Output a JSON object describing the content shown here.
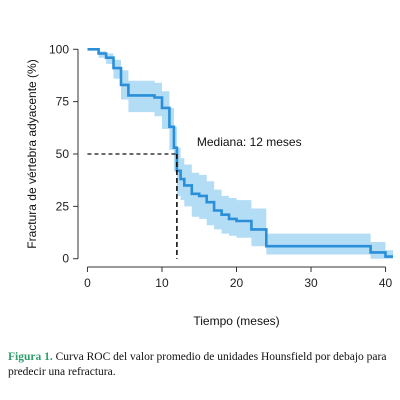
{
  "chart_data": {
    "type": "line",
    "title": "",
    "xlabel": "Tiempo (meses)",
    "ylabel": "Fractura de vértebra adyacente (%)",
    "xlim": [
      -1,
      41
    ],
    "ylim": [
      -3,
      103
    ],
    "xticks": [
      0,
      10,
      20,
      30,
      40
    ],
    "yticks": [
      0,
      25,
      50,
      75,
      100
    ],
    "grid": false,
    "series": [
      {
        "line_color": "#2a8fd8",
        "band_color": "#b3dcf5",
        "x": [
          0,
          1.5,
          2.5,
          3.5,
          4.5,
          5.5,
          9,
          10,
          11,
          11.6,
          12,
          12.5,
          13,
          14,
          15,
          16,
          17,
          18,
          19,
          20,
          22,
          24,
          32,
          38,
          40,
          41
        ],
        "y": [
          100,
          98,
          96,
          91,
          83,
          78,
          77,
          72,
          63,
          53,
          42,
          38,
          35,
          31,
          30,
          27,
          23,
          21,
          19,
          18,
          14,
          6,
          6,
          3,
          1,
          1
        ],
        "lower": [
          100,
          96,
          93,
          86,
          76,
          70,
          68,
          62,
          52,
          42,
          30,
          28,
          25,
          20,
          19,
          16,
          14,
          12,
          11,
          10,
          6,
          2,
          2,
          0,
          0,
          0
        ],
        "upper": [
          100,
          99,
          98,
          95,
          90,
          85,
          84,
          80,
          72,
          63,
          53,
          48,
          45,
          41,
          40,
          37,
          33,
          30,
          29,
          28,
          24,
          12,
          12,
          8,
          4,
          4
        ]
      }
    ],
    "median_guide": {
      "x": 12,
      "y": 50
    },
    "annotation": "Mediana: 12 meses"
  },
  "caption": {
    "label": "Figura 1.",
    "text": " Curva ROC del valor promedio de unidades Hounsfield por debajo para predecir una refractura."
  }
}
